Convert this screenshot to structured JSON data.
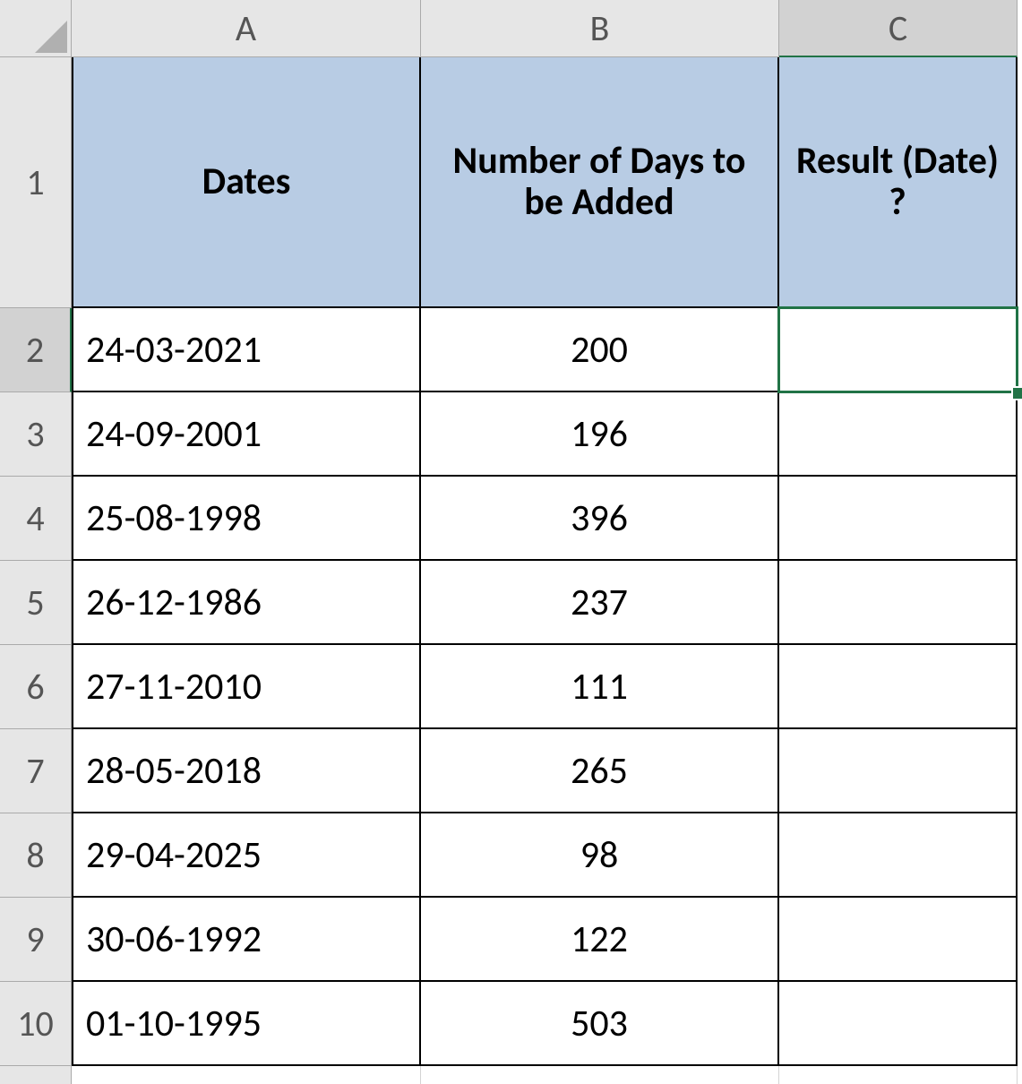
{
  "spreadsheet": {
    "type": "table",
    "gutter_bg": "#e6e6e6",
    "gutter_text": "#555555",
    "grid_line": "#d4d4d4",
    "cell_border": "#000000",
    "header_fill": "#b8cce4",
    "selection_color": "#217346",
    "cell_bg": "#ffffff",
    "font_family": "Calibri",
    "header_fontsize": 42,
    "body_fontsize": 42,
    "gutter_fontsize": 40,
    "row_gutter_width": 80,
    "col_header_height": 64,
    "col_widths": {
      "A": 390,
      "B": 400,
      "C": 266
    },
    "row_heights": {
      "1": 280,
      "default": 94
    },
    "columns": [
      "A",
      "B",
      "C"
    ],
    "row_numbers": [
      1,
      2,
      3,
      4,
      5,
      6,
      7,
      8,
      9,
      10
    ],
    "headers": {
      "A": "Dates",
      "B": "Number of Days to be Added",
      "C": "Result (Date) ?"
    },
    "rows": [
      {
        "A": "24-03-2021",
        "B": "200",
        "C": ""
      },
      {
        "A": "24-09-2001",
        "B": "196",
        "C": ""
      },
      {
        "A": "25-08-1998",
        "B": "396",
        "C": ""
      },
      {
        "A": "26-12-1986",
        "B": "237",
        "C": ""
      },
      {
        "A": "27-11-2010",
        "B": "111",
        "C": ""
      },
      {
        "A": "28-05-2018",
        "B": "265",
        "C": ""
      },
      {
        "A": "29-04-2025",
        "B": "98",
        "C": ""
      },
      {
        "A": "30-06-1992",
        "B": "122",
        "C": ""
      },
      {
        "A": "01-10-1995",
        "B": "503",
        "C": ""
      }
    ],
    "active_cell": {
      "col": "C",
      "row": 2
    },
    "selected_row_header": 2,
    "selected_col_header": "C"
  }
}
